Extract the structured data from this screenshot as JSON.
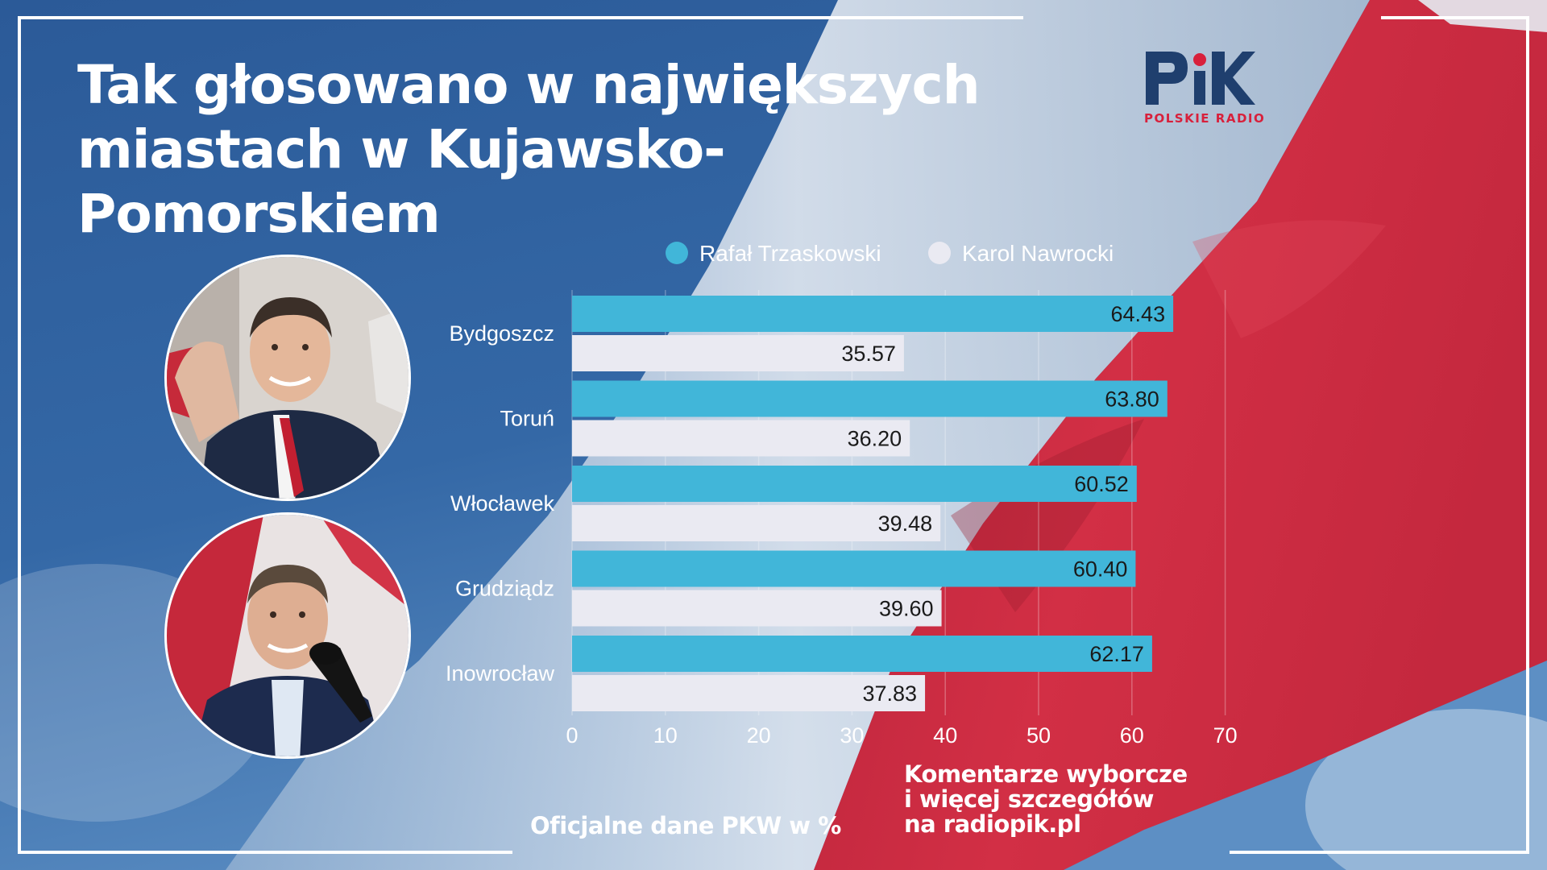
{
  "title": {
    "line1": "Tak głosowano w największych",
    "line2": "miastach w Kujawsko-Pomorskiem"
  },
  "logo": {
    "brand": "PiK",
    "subtitle": "POLSKIE RADIO"
  },
  "colors": {
    "background_blue": "#2d5c99",
    "flag_red": "#c8283f",
    "series_trzaskowski": "#41b6d9",
    "series_nawrocki": "#eaeaf2",
    "logo_dark": "#1f3f6e",
    "logo_red": "#d8203b"
  },
  "chart_data": {
    "type": "bar",
    "orientation": "horizontal",
    "categories": [
      "Bydgoszcz",
      "Toruń",
      "Włocławek",
      "Grudziądz",
      "Inowrocław"
    ],
    "series": [
      {
        "name": "Rafał Trzaskowski",
        "values": [
          64.43,
          63.8,
          60.52,
          60.4,
          62.17
        ],
        "color": "#41b6d9"
      },
      {
        "name": "Karol Nawrocki",
        "values": [
          35.57,
          36.2,
          39.48,
          39.6,
          37.83
        ],
        "color": "#eaeaf2"
      }
    ],
    "value_labels": [
      [
        "64.43",
        "63.80",
        "60.52",
        "60.40",
        "62.17"
      ],
      [
        "35.57",
        "36.20",
        "39.48",
        "39.60",
        "37.83"
      ]
    ],
    "xlim": [
      0,
      70
    ],
    "xticks": [
      0,
      10,
      20,
      30,
      40,
      50,
      60,
      70
    ],
    "xtick_labels": [
      "0",
      "10",
      "20",
      "30",
      "40",
      "50",
      "60",
      "70"
    ],
    "grid": true,
    "legend_position": "top"
  },
  "footer": {
    "source_note": "Oficjalne dane PKW w %",
    "cta_line1": "Komentarze wyborcze",
    "cta_line2": "i więcej szczegółów",
    "cta_line3": "na radiopik.pl"
  }
}
